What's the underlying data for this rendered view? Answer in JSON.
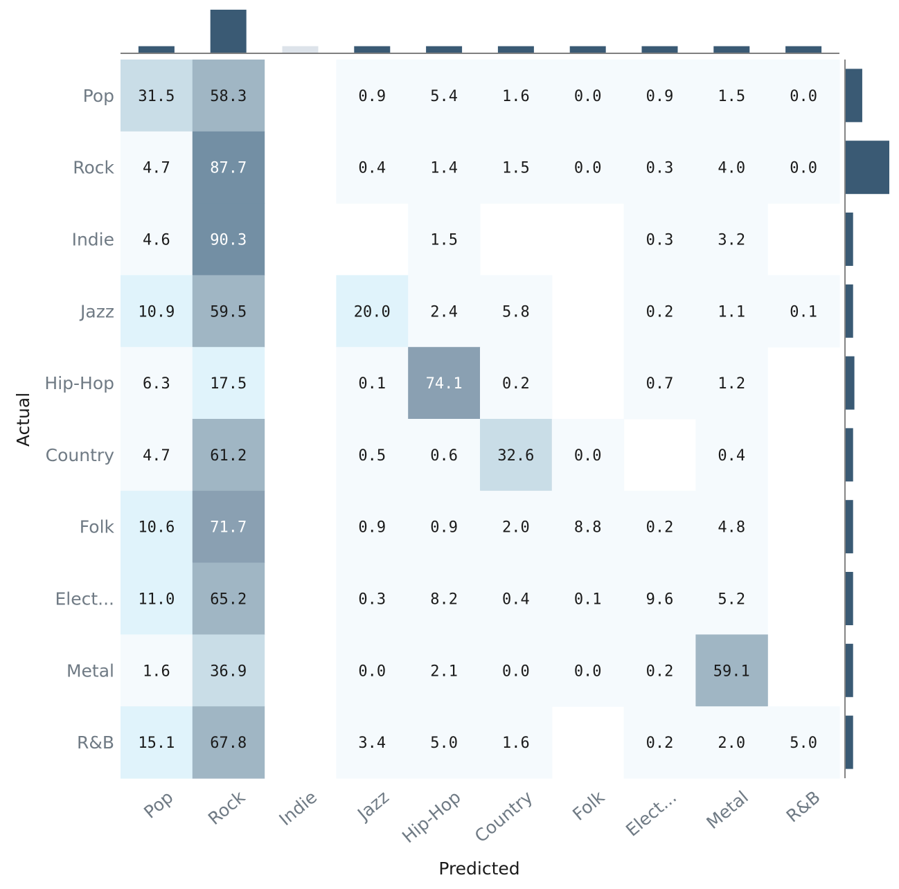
{
  "chart_data": {
    "type": "heatmap",
    "xlabel": "Predicted",
    "ylabel": "Actual",
    "columns": [
      "Pop",
      "Rock",
      "Indie",
      "Jazz",
      "Hip-Hop",
      "Country",
      "Folk",
      "Elect...",
      "Metal",
      "R&B"
    ],
    "rows": [
      "Pop",
      "Rock",
      "Indie",
      "Jazz",
      "Hip-Hop",
      "Country",
      "Folk",
      "Elect...",
      "Metal",
      "R&B"
    ],
    "values": [
      [
        31.5,
        58.3,
        null,
        0.9,
        5.4,
        1.6,
        0.0,
        0.9,
        1.5,
        0.0
      ],
      [
        4.7,
        87.7,
        null,
        0.4,
        1.4,
        1.5,
        0.0,
        0.3,
        4.0,
        0.0
      ],
      [
        4.6,
        90.3,
        null,
        null,
        1.5,
        null,
        null,
        0.3,
        3.2,
        null
      ],
      [
        10.9,
        59.5,
        null,
        20.0,
        2.4,
        5.8,
        null,
        0.2,
        1.1,
        0.1
      ],
      [
        6.3,
        17.5,
        null,
        0.1,
        74.1,
        0.2,
        null,
        0.7,
        1.2,
        null
      ],
      [
        4.7,
        61.2,
        null,
        0.5,
        0.6,
        32.6,
        0.0,
        null,
        0.4,
        null
      ],
      [
        10.6,
        71.7,
        null,
        0.9,
        0.9,
        2.0,
        8.8,
        0.2,
        4.8,
        null
      ],
      [
        11.0,
        65.2,
        null,
        0.3,
        8.2,
        0.4,
        0.1,
        9.6,
        5.2,
        null
      ],
      [
        1.6,
        36.9,
        null,
        0.0,
        2.1,
        0.0,
        0.0,
        0.2,
        59.1,
        null
      ],
      [
        15.1,
        67.8,
        null,
        3.4,
        5.0,
        1.6,
        null,
        0.2,
        2.0,
        5.0
      ]
    ],
    "column_marginal": [
      0.15,
      1.0,
      0.15,
      0.15,
      0.15,
      0.15,
      0.15,
      0.15,
      0.15,
      0.15
    ],
    "column_marginal_colors": [
      "#3a5a74",
      "#3a5a74",
      "#dde3ea",
      "#3a5a74",
      "#3a5a74",
      "#3a5a74",
      "#3a5a74",
      "#3a5a74",
      "#3a5a74",
      "#3a5a74"
    ],
    "row_marginal": [
      0.38,
      1.0,
      0.17,
      0.17,
      0.2,
      0.17,
      0.17,
      0.17,
      0.17,
      0.17
    ],
    "marginal_color": "#3a5a74",
    "colors": {
      "level0": "#f5fafd",
      "level1": "#e0f3fb",
      "level2": "#c9dde7",
      "level3": "#a0b6c4",
      "level4": "#8aa0b2",
      "level5": "#738fa4",
      "text_dark": "#1a1a1a",
      "text_light": "#ffffff"
    }
  }
}
